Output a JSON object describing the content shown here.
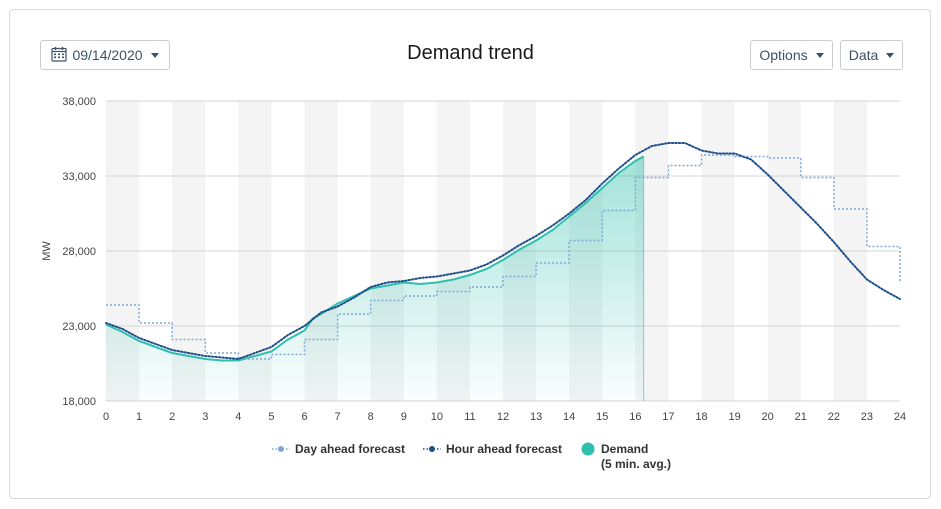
{
  "header": {
    "date_value": "09/14/2020",
    "title": "Demand trend",
    "options_label": "Options",
    "data_label": "Data"
  },
  "icons": {
    "date": "calendar-icon",
    "dropdown": "chevron-down-icon"
  },
  "colors": {
    "day_ahead": "#7fa8d6",
    "hour_ahead": "#1f4e8c",
    "demand": "#2fbfad",
    "band": "#f4f4f4",
    "grid": "#d4d4d4"
  },
  "chart_data": {
    "type": "line",
    "title": "Demand trend",
    "xlabel": "",
    "ylabel": "MW",
    "xlim": [
      0,
      24
    ],
    "ylim": [
      18000,
      38000
    ],
    "x_ticks": [
      "0",
      "1",
      "2",
      "3",
      "4",
      "5",
      "6",
      "7",
      "8",
      "9",
      "10",
      "11",
      "12",
      "13",
      "14",
      "15",
      "16",
      "17",
      "18",
      "19",
      "20",
      "21",
      "22",
      "23",
      "24"
    ],
    "y_ticks": [
      "18,000",
      "23,000",
      "28,000",
      "33,000",
      "38,000"
    ],
    "y_tick_values": [
      18000,
      23000,
      28000,
      33000,
      38000
    ],
    "grid": true,
    "legend_position": "bottom",
    "series": [
      {
        "name": "Day ahead forecast",
        "style": "dotted-step",
        "x": [
          0,
          1,
          2,
          3,
          4,
          5,
          6,
          7,
          8,
          9,
          10,
          11,
          12,
          13,
          14,
          15,
          16,
          17,
          18,
          19,
          20,
          21,
          22,
          23,
          24
        ],
        "values": [
          24400,
          23200,
          22100,
          21200,
          20800,
          21100,
          22100,
          23800,
          24700,
          25000,
          25300,
          25600,
          26300,
          27200,
          28700,
          30700,
          32900,
          33700,
          34400,
          34300,
          34200,
          32900,
          30800,
          28300,
          26000
        ]
      },
      {
        "name": "Hour ahead forecast",
        "style": "dotted",
        "x": [
          0,
          0.5,
          1,
          1.5,
          2,
          2.5,
          3,
          3.5,
          4,
          4.5,
          5,
          5.5,
          6,
          6.5,
          7,
          7.5,
          8,
          8.5,
          9,
          9.5,
          10,
          10.5,
          11,
          11.5,
          12,
          12.5,
          13,
          13.5,
          14,
          14.5,
          15,
          15.5,
          16,
          16.5,
          17,
          17.5,
          18,
          18.5,
          19,
          19.5,
          20,
          20.5,
          21,
          21.5,
          22,
          22.5,
          23,
          23.5,
          24
        ],
        "values": [
          23200,
          22800,
          22200,
          21800,
          21400,
          21200,
          21000,
          20900,
          20800,
          21200,
          21600,
          22400,
          23000,
          23900,
          24300,
          24900,
          25600,
          25900,
          26000,
          26200,
          26300,
          26500,
          26700,
          27100,
          27700,
          28400,
          29000,
          29700,
          30500,
          31400,
          32500,
          33500,
          34400,
          35000,
          35200,
          35200,
          34700,
          34500,
          34500,
          34100,
          33100,
          32000,
          30900,
          29800,
          28600,
          27300,
          26100,
          25400,
          24800
        ]
      },
      {
        "name": "Demand",
        "subtitle": "(5 min. avg.)",
        "style": "area",
        "x": [
          0,
          0.5,
          1,
          1.5,
          2,
          2.5,
          3,
          3.5,
          4,
          4.5,
          5,
          5.5,
          6,
          6.25,
          6.5,
          7,
          7.5,
          8,
          8.5,
          9,
          9.5,
          10,
          10.5,
          11,
          11.5,
          12,
          12.5,
          13,
          13.5,
          14,
          14.5,
          15,
          15.5,
          16,
          16.25
        ],
        "values": [
          23100,
          22600,
          22000,
          21600,
          21200,
          21000,
          20800,
          20700,
          20700,
          21000,
          21300,
          22100,
          22700,
          23500,
          23800,
          24500,
          25000,
          25500,
          25700,
          25900,
          25800,
          25900,
          26100,
          26400,
          26800,
          27400,
          28100,
          28700,
          29400,
          30300,
          31200,
          32200,
          33200,
          34000,
          34300
        ]
      }
    ]
  }
}
